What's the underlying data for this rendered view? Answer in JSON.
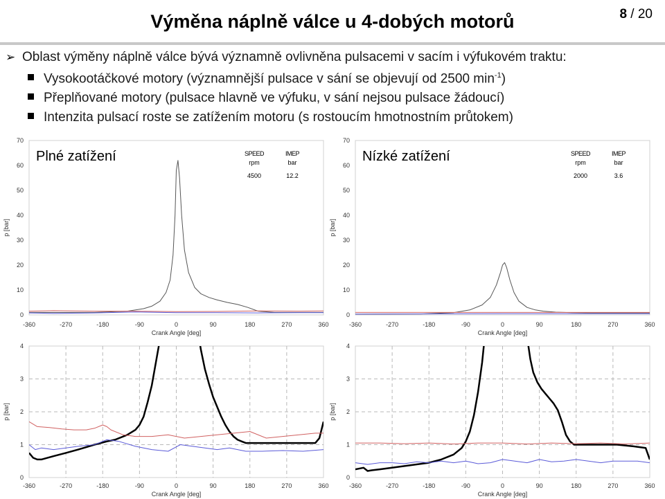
{
  "header": {
    "title": "Výměna náplně válce u 4-dobých motorů",
    "page_current": "8",
    "page_sep": " / ",
    "page_total": "20"
  },
  "bullets": {
    "main": "Oblast výměny náplně válce bývá významně ovlivněna pulsacemi v sacím i výfukovém traktu:",
    "sub1_pre": "Vysokootáčkové motory (významnější pulsace v sání se objevují od 2500 min",
    "sub1_sup": "-1",
    "sub1_post": ")",
    "sub2": "Přeplňované motory (pulsace hlavně ve výfuku, v sání nejsou pulsace žádoucí)",
    "sub3": "Intenzita pulsací roste se zatížením motoru (s rostoucím hmotnostním průtokem)"
  },
  "colors": {
    "cylinder": "#555555",
    "cylinder_zoom": "#000000",
    "intake": "#5a5ad8",
    "exhaust": "#d06060",
    "grid": "#b8b8b8"
  },
  "chart_data": [
    {
      "type": "line",
      "title": "Plné zatížení",
      "xlabel": "Crank Angle [deg]",
      "ylabel": "p [bar]",
      "xlim": [
        -360,
        360
      ],
      "ylim": [
        0,
        70
      ],
      "xticks": [
        "-360",
        "-270",
        "-180",
        "-90",
        "0",
        "90",
        "180",
        "270",
        "360"
      ],
      "yticks": [
        "0",
        "10",
        "20",
        "30",
        "40",
        "50",
        "60",
        "70"
      ],
      "table": {
        "h1": "SPEED",
        "h2": "IMEP",
        "u1": "rpm",
        "u2": "bar",
        "v1": "4500",
        "v2": "12.2"
      },
      "series": [
        {
          "role": "cylinder",
          "x": [
            -360,
            -200,
            -120,
            -80,
            -60,
            -40,
            -25,
            -15,
            -8,
            -3,
            0,
            4,
            8,
            13,
            20,
            30,
            45,
            60,
            80,
            100,
            125,
            150,
            175,
            200,
            240,
            300,
            360
          ],
          "y": [
            1,
            1,
            1.5,
            2.5,
            3.5,
            5.5,
            9,
            14,
            24,
            40,
            58,
            62,
            55,
            40,
            26,
            17,
            11,
            8.5,
            7,
            6,
            5,
            4.2,
            3,
            1.5,
            1,
            1,
            1
          ]
        },
        {
          "role": "intake",
          "x": [
            -360,
            -300,
            -200,
            -100,
            0,
            100,
            200,
            300,
            360
          ],
          "y": [
            0.8,
            0.6,
            0.8,
            1.2,
            0.9,
            0.9,
            0.8,
            0.9,
            0.9
          ]
        },
        {
          "role": "exhaust",
          "x": [
            -360,
            -300,
            -200,
            -100,
            0,
            100,
            200,
            300,
            360
          ],
          "y": [
            1.5,
            1.7,
            1.5,
            1.5,
            1.3,
            1.4,
            1.6,
            1.5,
            1.6
          ]
        }
      ]
    },
    {
      "type": "line",
      "title": "Nízké zatížení",
      "xlabel": "Crank Angle [deg]",
      "ylabel": "p [bar]",
      "xlim": [
        -360,
        360
      ],
      "ylim": [
        0,
        70
      ],
      "xticks": [
        "-360",
        "-270",
        "-180",
        "-90",
        "0",
        "90",
        "180",
        "270",
        "360"
      ],
      "yticks": [
        "0",
        "10",
        "20",
        "30",
        "40",
        "50",
        "60",
        "70"
      ],
      "table": {
        "h1": "SPEED",
        "h2": "IMEP",
        "u1": "rpm",
        "u2": "bar",
        "v1": "2000",
        "v2": "3.6"
      },
      "series": [
        {
          "role": "cylinder",
          "x": [
            -360,
            -200,
            -120,
            -80,
            -50,
            -30,
            -15,
            -5,
            0,
            5,
            10,
            18,
            28,
            40,
            60,
            80,
            100,
            130,
            170,
            220,
            300,
            360
          ],
          "y": [
            0.3,
            0.4,
            0.9,
            2,
            4,
            7,
            12,
            17,
            20,
            21,
            19,
            14,
            9,
            5.5,
            3,
            2,
            1.5,
            1.1,
            0.9,
            0.8,
            0.8,
            0.8
          ]
        },
        {
          "role": "intake",
          "x": [
            -360,
            -300,
            -200,
            -100,
            0,
            100,
            200,
            300,
            360
          ],
          "y": [
            0.3,
            0.35,
            0.4,
            0.45,
            0.5,
            0.5,
            0.5,
            0.5,
            0.5
          ]
        },
        {
          "role": "exhaust",
          "x": [
            -360,
            -300,
            -200,
            -100,
            0,
            100,
            200,
            300,
            360
          ],
          "y": [
            1.0,
            1.0,
            1.0,
            1.0,
            1.0,
            1.0,
            1.0,
            1.0,
            1.0
          ]
        }
      ]
    },
    {
      "type": "line",
      "xlabel": "Crank Angle [deg]",
      "ylabel": "p [bar]",
      "xlim": [
        -360,
        360
      ],
      "ylim": [
        0,
        4
      ],
      "xticks": [
        "-360",
        "-270",
        "-180",
        "-90",
        "0",
        "90",
        "180",
        "270",
        "360"
      ],
      "yticks": [
        "0",
        "1",
        "2",
        "3",
        "4"
      ],
      "series": [
        {
          "role": "cylinder",
          "x": [
            -360,
            -350,
            -340,
            -330,
            -300,
            -270,
            -240,
            -200,
            -170,
            -150,
            -120,
            -100,
            -90,
            -80,
            -70,
            -60,
            -50,
            -40,
            -35,
            -30
          ],
          "y": [
            0.75,
            0.6,
            0.55,
            0.55,
            0.65,
            0.75,
            0.85,
            1.0,
            1.1,
            1.15,
            1.3,
            1.45,
            1.6,
            1.85,
            2.3,
            2.8,
            3.5,
            4.2,
            4.5,
            4.7
          ]
        },
        {
          "role": "cylinder",
          "x": [
            50,
            55,
            60,
            70,
            80,
            90,
            100,
            110,
            120,
            130,
            140,
            150,
            160,
            170,
            180,
            190,
            200,
            210,
            240,
            280,
            320,
            340,
            350,
            360
          ],
          "y": [
            4.7,
            4.3,
            3.9,
            3.3,
            2.85,
            2.45,
            2.15,
            1.85,
            1.6,
            1.4,
            1.25,
            1.15,
            1.1,
            1.05,
            1.05,
            1.05,
            1.05,
            1.05,
            1.05,
            1.05,
            1.05,
            1.05,
            1.2,
            1.7
          ]
        },
        {
          "role": "exhaust",
          "x": [
            -360,
            -340,
            -310,
            -280,
            -250,
            -220,
            -200,
            -180,
            -170,
            -160,
            -130,
            -100,
            -60,
            -20,
            20,
            60,
            100,
            140,
            180,
            220,
            260,
            300,
            340,
            360
          ],
          "y": [
            1.7,
            1.55,
            1.52,
            1.48,
            1.45,
            1.45,
            1.5,
            1.6,
            1.55,
            1.45,
            1.3,
            1.25,
            1.25,
            1.3,
            1.2,
            1.25,
            1.3,
            1.35,
            1.4,
            1.2,
            1.25,
            1.3,
            1.35,
            1.35
          ]
        },
        {
          "role": "intake",
          "x": [
            -360,
            -345,
            -330,
            -300,
            -270,
            -240,
            -200,
            -170,
            -140,
            -100,
            -60,
            -20,
            10,
            40,
            70,
            100,
            130,
            170,
            210,
            260,
            310,
            360
          ],
          "y": [
            1.0,
            0.85,
            0.9,
            0.85,
            0.9,
            0.95,
            1.0,
            1.15,
            1.1,
            0.95,
            0.85,
            0.8,
            1.0,
            0.95,
            0.9,
            0.85,
            0.9,
            0.8,
            0.8,
            0.82,
            0.8,
            0.85
          ]
        }
      ]
    },
    {
      "type": "line",
      "xlabel": "Crank Angle [deg]",
      "ylabel": "p [bar]",
      "xlim": [
        -360,
        360
      ],
      "ylim": [
        0,
        4
      ],
      "xticks": [
        "-360",
        "-270",
        "-180",
        "-90",
        "0",
        "90",
        "180",
        "270",
        "360"
      ],
      "yticks": [
        "0",
        "1",
        "2",
        "3",
        "4"
      ],
      "series": [
        {
          "role": "cylinder",
          "x": [
            -360,
            -340,
            -330,
            -320,
            -300,
            -270,
            -240,
            -210,
            -180,
            -150,
            -120,
            -100,
            -90,
            -80,
            -70,
            -60,
            -50,
            -45,
            -40
          ],
          "y": [
            0.25,
            0.3,
            0.2,
            0.22,
            0.25,
            0.3,
            0.35,
            0.4,
            0.45,
            0.55,
            0.7,
            0.9,
            1.1,
            1.4,
            1.9,
            2.6,
            3.5,
            4.1,
            4.7
          ]
        },
        {
          "role": "cylinder",
          "x": [
            58,
            62,
            68,
            75,
            85,
            95,
            105,
            115,
            125,
            135,
            145,
            155,
            165,
            175,
            200,
            240,
            280,
            320,
            350,
            360
          ],
          "y": [
            4.7,
            4.1,
            3.6,
            3.2,
            2.9,
            2.7,
            2.55,
            2.4,
            2.25,
            2.05,
            1.7,
            1.3,
            1.1,
            1.0,
            1.0,
            1.0,
            1.0,
            0.95,
            0.9,
            0.55
          ]
        },
        {
          "role": "exhaust",
          "x": [
            -360,
            -300,
            -240,
            -180,
            -120,
            -60,
            0,
            60,
            120,
            180,
            240,
            300,
            360
          ],
          "y": [
            1.05,
            1.05,
            1.03,
            1.05,
            1.02,
            1.05,
            1.05,
            1.02,
            1.05,
            1.03,
            1.05,
            1.02,
            1.05
          ]
        },
        {
          "role": "intake",
          "x": [
            -360,
            -330,
            -300,
            -270,
            -240,
            -210,
            -180,
            -150,
            -120,
            -90,
            -60,
            -30,
            0,
            30,
            60,
            90,
            120,
            150,
            180,
            210,
            240,
            270,
            300,
            330,
            360
          ],
          "y": [
            0.45,
            0.4,
            0.45,
            0.45,
            0.42,
            0.48,
            0.45,
            0.5,
            0.45,
            0.5,
            0.42,
            0.45,
            0.55,
            0.5,
            0.45,
            0.55,
            0.48,
            0.5,
            0.55,
            0.5,
            0.45,
            0.5,
            0.5,
            0.5,
            0.45
          ]
        }
      ]
    }
  ]
}
